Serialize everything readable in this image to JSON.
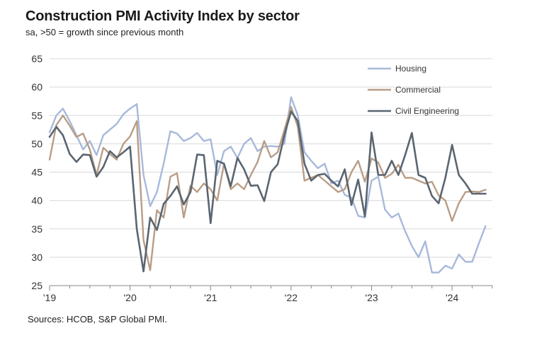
{
  "chart_data": {
    "type": "line",
    "title": "Construction PMI Activity Index by sector",
    "subtitle": "sa, >50 = growth since previous month",
    "source": "Sources: HCOB, S&P Global PMI.",
    "xlabel": "",
    "ylabel": "",
    "ylim": [
      25,
      65
    ],
    "y_ticks": [
      "25",
      "30",
      "35",
      "40",
      "45",
      "50",
      "55",
      "60",
      "65"
    ],
    "x_ticks": [
      "'19",
      "'20",
      "'21",
      "'22",
      "'23",
      "'24"
    ],
    "x_tick_positions": [
      0,
      12,
      24,
      36,
      48,
      60
    ],
    "xlim": [
      0,
      66
    ],
    "x_start": "2019-01",
    "x_frequency": "monthly",
    "grid": "horizontal",
    "legend_position": "top-right",
    "series": [
      {
        "name": "Housing",
        "color": "#a7b9db",
        "values": [
          52.0,
          55.0,
          56.2,
          54.0,
          51.5,
          49.0,
          50.5,
          48.0,
          51.5,
          52.5,
          53.5,
          55.2,
          56.2,
          57.0,
          44.5,
          39.0,
          41.5,
          46.5,
          52.2,
          51.8,
          50.5,
          51.0,
          51.9,
          50.5,
          50.8,
          44.5,
          48.7,
          49.5,
          47.5,
          50.0,
          51.0,
          48.7,
          49.5,
          49.6,
          49.5,
          50.0,
          58.2,
          55.0,
          48.5,
          47.0,
          45.7,
          46.5,
          43.0,
          43.5,
          41.0,
          40.5,
          37.3,
          37.0,
          43.5,
          44.2,
          38.4,
          37.0,
          37.7,
          34.6,
          32.0,
          30.0,
          32.8,
          27.3,
          27.3,
          28.5,
          28.0,
          30.5,
          29.2,
          29.2,
          32.5,
          35.5
        ]
      },
      {
        "name": "Commercial",
        "color": "#b99d86",
        "values": [
          47.2,
          53.3,
          55.0,
          53.2,
          51.2,
          51.8,
          49.0,
          44.5,
          49.3,
          48.2,
          47.2,
          50.0,
          51.3,
          54.0,
          33.0,
          27.7,
          38.3,
          37.0,
          44.2,
          44.8,
          37.0,
          42.6,
          41.5,
          43.0,
          42.0,
          40.0,
          46.5,
          42.0,
          43.0,
          42.0,
          44.5,
          46.8,
          50.5,
          47.6,
          48.5,
          52.4,
          56.5,
          53.0,
          43.5,
          44.0,
          44.5,
          43.5,
          42.5,
          41.5,
          42.0,
          45.0,
          47.0,
          43.3,
          47.4,
          46.7,
          44.0,
          44.7,
          46.3,
          44.0,
          44.0,
          43.5,
          43.0,
          43.3,
          40.9,
          40.0,
          36.4,
          39.5,
          41.5,
          41.6,
          41.5,
          41.9
        ]
      },
      {
        "name": "Civil Engineering",
        "color": "#5a6570",
        "values": [
          51.2,
          53.0,
          51.5,
          48.2,
          46.8,
          48.1,
          48.0,
          44.2,
          45.9,
          48.7,
          47.6,
          48.5,
          49.5,
          35.0,
          27.5,
          37.0,
          34.8,
          39.4,
          40.8,
          42.5,
          39.3,
          41.5,
          48.1,
          48.0,
          36.0,
          47.0,
          46.5,
          42.5,
          47.5,
          45.5,
          42.6,
          42.7,
          39.9,
          45.0,
          46.4,
          51.5,
          55.7,
          54.0,
          46.5,
          43.5,
          44.5,
          44.7,
          43.5,
          42.5,
          45.5,
          39.2,
          43.7,
          37.2,
          52.0,
          44.5,
          44.5,
          47.0,
          44.5,
          48.0,
          51.9,
          44.5,
          44.0,
          40.8,
          39.5,
          44.0,
          49.8,
          44.5,
          43.0,
          41.2,
          41.2,
          41.2
        ]
      }
    ]
  }
}
